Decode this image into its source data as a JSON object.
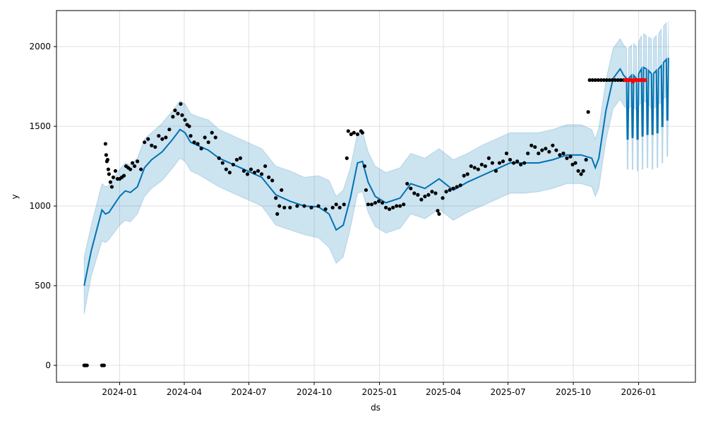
{
  "chart_data": {
    "type": "line",
    "title": "",
    "xlabel": "ds",
    "ylabel": "y",
    "x_unit": "days since x_origin",
    "x_origin": "2024-01-01",
    "xlim_days": [
      -89,
      811
    ],
    "ylim": [
      -106,
      2226
    ],
    "grid": true,
    "x_ticks": [
      {
        "label": "2024-01",
        "day": 0
      },
      {
        "label": "2024-04",
        "day": 91
      },
      {
        "label": "2024-07",
        "day": 182
      },
      {
        "label": "2024-10",
        "day": 274
      },
      {
        "label": "2025-01",
        "day": 366
      },
      {
        "label": "2025-04",
        "day": 456
      },
      {
        "label": "2025-07",
        "day": 547
      },
      {
        "label": "2025-10",
        "day": 639
      },
      {
        "label": "2026-01",
        "day": 731
      }
    ],
    "y_ticks": [
      0,
      500,
      1000,
      1500,
      2000
    ],
    "colors": {
      "forecast": "#0072B2",
      "band": "#0072B2",
      "observed": "#000000",
      "test": "#ff0000"
    },
    "forecast": [
      [
        -50,
        500,
        320,
        680
      ],
      [
        -40,
        720,
        560,
        880
      ],
      [
        -25,
        975,
        780,
        1140
      ],
      [
        -20,
        950,
        770,
        1120
      ],
      [
        -15,
        960,
        790,
        1130
      ],
      [
        0,
        1060,
        880,
        1230
      ],
      [
        8,
        1095,
        910,
        1270
      ],
      [
        15,
        1085,
        900,
        1260
      ],
      [
        25,
        1120,
        950,
        1300
      ],
      [
        35,
        1240,
        1060,
        1420
      ],
      [
        45,
        1290,
        1110,
        1460
      ],
      [
        60,
        1340,
        1160,
        1520
      ],
      [
        75,
        1420,
        1240,
        1600
      ],
      [
        85,
        1480,
        1300,
        1660
      ],
      [
        92,
        1460,
        1280,
        1640
      ],
      [
        100,
        1400,
        1220,
        1580
      ],
      [
        110,
        1380,
        1200,
        1560
      ],
      [
        125,
        1350,
        1160,
        1540
      ],
      [
        140,
        1300,
        1120,
        1480
      ],
      [
        160,
        1260,
        1080,
        1440
      ],
      [
        180,
        1220,
        1040,
        1400
      ],
      [
        200,
        1180,
        1000,
        1360
      ],
      [
        220,
        1070,
        880,
        1250
      ],
      [
        240,
        1030,
        850,
        1220
      ],
      [
        260,
        1000,
        820,
        1180
      ],
      [
        280,
        995,
        800,
        1190
      ],
      [
        295,
        950,
        740,
        1160
      ],
      [
        305,
        850,
        640,
        1060
      ],
      [
        315,
        880,
        680,
        1100
      ],
      [
        325,
        1050,
        860,
        1240
      ],
      [
        335,
        1270,
        1080,
        1460
      ],
      [
        342,
        1280,
        1090,
        1470
      ],
      [
        350,
        1150,
        960,
        1340
      ],
      [
        360,
        1060,
        870,
        1250
      ],
      [
        375,
        1020,
        830,
        1210
      ],
      [
        395,
        1050,
        860,
        1240
      ],
      [
        410,
        1140,
        950,
        1330
      ],
      [
        430,
        1110,
        920,
        1300
      ],
      [
        450,
        1170,
        980,
        1360
      ],
      [
        470,
        1100,
        910,
        1290
      ],
      [
        490,
        1150,
        960,
        1330
      ],
      [
        510,
        1190,
        1000,
        1380
      ],
      [
        530,
        1230,
        1040,
        1420
      ],
      [
        550,
        1270,
        1080,
        1460
      ],
      [
        570,
        1270,
        1080,
        1460
      ],
      [
        590,
        1270,
        1090,
        1460
      ],
      [
        610,
        1290,
        1110,
        1480
      ],
      [
        630,
        1320,
        1140,
        1510
      ],
      [
        650,
        1320,
        1140,
        1510
      ],
      [
        665,
        1300,
        1120,
        1480
      ],
      [
        670,
        1240,
        1060,
        1420
      ],
      [
        675,
        1300,
        1110,
        1490
      ],
      [
        685,
        1600,
        1410,
        1790
      ],
      [
        695,
        1800,
        1610,
        1990
      ],
      [
        705,
        1860,
        1670,
        2050
      ],
      [
        710,
        1820,
        1630,
        2010
      ],
      [
        714,
        1800,
        1610,
        1990
      ],
      [
        715,
        1420,
        1230,
        1610
      ],
      [
        716,
        1420,
        1230,
        1610
      ],
      [
        717,
        1800,
        1610,
        1990
      ],
      [
        721,
        1820,
        1630,
        2010
      ],
      [
        722,
        1430,
        1230,
        1630
      ],
      [
        723,
        1430,
        1230,
        1630
      ],
      [
        724,
        1820,
        1620,
        2020
      ],
      [
        728,
        1800,
        1600,
        2000
      ],
      [
        729,
        1420,
        1220,
        1620
      ],
      [
        730,
        1420,
        1220,
        1620
      ],
      [
        731,
        1830,
        1630,
        2030
      ],
      [
        735,
        1860,
        1650,
        2070
      ],
      [
        736,
        1440,
        1230,
        1650
      ],
      [
        737,
        1440,
        1230,
        1650
      ],
      [
        738,
        1870,
        1660,
        2080
      ],
      [
        742,
        1860,
        1650,
        2070
      ],
      [
        743,
        1450,
        1240,
        1660
      ],
      [
        744,
        1450,
        1240,
        1660
      ],
      [
        745,
        1850,
        1640,
        2060
      ],
      [
        749,
        1830,
        1610,
        2050
      ],
      [
        750,
        1450,
        1230,
        1670
      ],
      [
        751,
        1450,
        1230,
        1670
      ],
      [
        752,
        1830,
        1610,
        2050
      ],
      [
        756,
        1850,
        1630,
        2070
      ],
      [
        757,
        1460,
        1240,
        1680
      ],
      [
        758,
        1460,
        1240,
        1680
      ],
      [
        759,
        1860,
        1640,
        2080
      ],
      [
        763,
        1880,
        1650,
        2110
      ],
      [
        764,
        1500,
        1270,
        1730
      ],
      [
        765,
        1500,
        1270,
        1730
      ],
      [
        766,
        1900,
        1670,
        2130
      ],
      [
        770,
        1920,
        1690,
        2150
      ],
      [
        771,
        1540,
        1310,
        1770
      ],
      [
        772,
        1540,
        1310,
        1770
      ],
      [
        773,
        1930,
        1700,
        2160
      ]
    ],
    "observed": [
      [
        -50,
        0
      ],
      [
        -49,
        0
      ],
      [
        -48,
        0
      ],
      [
        -46,
        0
      ],
      [
        -25,
        0
      ],
      [
        -24,
        0
      ],
      [
        -22,
        0
      ],
      [
        -20,
        1390
      ],
      [
        -19,
        1320
      ],
      [
        -18,
        1280
      ],
      [
        -17,
        1290
      ],
      [
        -16,
        1230
      ],
      [
        -15,
        1200
      ],
      [
        -13,
        1150
      ],
      [
        -11,
        1120
      ],
      [
        -9,
        1180
      ],
      [
        -6,
        1220
      ],
      [
        -3,
        1170
      ],
      [
        0,
        1170
      ],
      [
        3,
        1180
      ],
      [
        6,
        1190
      ],
      [
        9,
        1250
      ],
      [
        12,
        1240
      ],
      [
        15,
        1230
      ],
      [
        18,
        1270
      ],
      [
        21,
        1250
      ],
      [
        25,
        1280
      ],
      [
        30,
        1230
      ],
      [
        35,
        1400
      ],
      [
        40,
        1420
      ],
      [
        45,
        1380
      ],
      [
        50,
        1370
      ],
      [
        55,
        1440
      ],
      [
        60,
        1420
      ],
      [
        65,
        1430
      ],
      [
        70,
        1480
      ],
      [
        75,
        1560
      ],
      [
        78,
        1600
      ],
      [
        82,
        1580
      ],
      [
        86,
        1640
      ],
      [
        88,
        1570
      ],
      [
        92,
        1540
      ],
      [
        95,
        1510
      ],
      [
        98,
        1500
      ],
      [
        100,
        1440
      ],
      [
        105,
        1400
      ],
      [
        110,
        1390
      ],
      [
        115,
        1360
      ],
      [
        120,
        1430
      ],
      [
        125,
        1400
      ],
      [
        130,
        1460
      ],
      [
        135,
        1430
      ],
      [
        140,
        1300
      ],
      [
        145,
        1270
      ],
      [
        150,
        1230
      ],
      [
        155,
        1210
      ],
      [
        160,
        1260
      ],
      [
        165,
        1290
      ],
      [
        170,
        1300
      ],
      [
        175,
        1220
      ],
      [
        180,
        1200
      ],
      [
        185,
        1230
      ],
      [
        190,
        1210
      ],
      [
        195,
        1220
      ],
      [
        200,
        1200
      ],
      [
        205,
        1250
      ],
      [
        210,
        1180
      ],
      [
        215,
        1160
      ],
      [
        220,
        1050
      ],
      [
        222,
        950
      ],
      [
        225,
        1000
      ],
      [
        228,
        1100
      ],
      [
        232,
        990
      ],
      [
        240,
        990
      ],
      [
        250,
        1000
      ],
      [
        260,
        1000
      ],
      [
        270,
        990
      ],
      [
        280,
        1000
      ],
      [
        290,
        980
      ],
      [
        300,
        990
      ],
      [
        305,
        1010
      ],
      [
        310,
        990
      ],
      [
        316,
        1010
      ],
      [
        320,
        1300
      ],
      [
        322,
        1470
      ],
      [
        326,
        1450
      ],
      [
        330,
        1460
      ],
      [
        335,
        1450
      ],
      [
        340,
        1470
      ],
      [
        342,
        1460
      ],
      [
        345,
        1250
      ],
      [
        347,
        1100
      ],
      [
        350,
        1010
      ],
      [
        355,
        1010
      ],
      [
        360,
        1020
      ],
      [
        365,
        1030
      ],
      [
        370,
        1020
      ],
      [
        375,
        990
      ],
      [
        380,
        980
      ],
      [
        385,
        990
      ],
      [
        390,
        1000
      ],
      [
        395,
        1000
      ],
      [
        400,
        1010
      ],
      [
        405,
        1140
      ],
      [
        410,
        1110
      ],
      [
        415,
        1080
      ],
      [
        420,
        1070
      ],
      [
        425,
        1040
      ],
      [
        430,
        1060
      ],
      [
        435,
        1070
      ],
      [
        440,
        1090
      ],
      [
        445,
        1080
      ],
      [
        448,
        970
      ],
      [
        450,
        950
      ],
      [
        455,
        1050
      ],
      [
        460,
        1090
      ],
      [
        465,
        1100
      ],
      [
        470,
        1110
      ],
      [
        475,
        1120
      ],
      [
        480,
        1130
      ],
      [
        485,
        1190
      ],
      [
        490,
        1200
      ],
      [
        495,
        1250
      ],
      [
        500,
        1240
      ],
      [
        505,
        1230
      ],
      [
        510,
        1260
      ],
      [
        515,
        1250
      ],
      [
        520,
        1300
      ],
      [
        525,
        1270
      ],
      [
        530,
        1220
      ],
      [
        535,
        1270
      ],
      [
        540,
        1280
      ],
      [
        545,
        1330
      ],
      [
        550,
        1290
      ],
      [
        555,
        1270
      ],
      [
        560,
        1280
      ],
      [
        565,
        1260
      ],
      [
        570,
        1270
      ],
      [
        575,
        1330
      ],
      [
        580,
        1380
      ],
      [
        585,
        1370
      ],
      [
        590,
        1330
      ],
      [
        595,
        1350
      ],
      [
        600,
        1360
      ],
      [
        605,
        1340
      ],
      [
        610,
        1380
      ],
      [
        615,
        1350
      ],
      [
        620,
        1320
      ],
      [
        625,
        1330
      ],
      [
        630,
        1300
      ],
      [
        635,
        1310
      ],
      [
        638,
        1260
      ],
      [
        642,
        1270
      ],
      [
        646,
        1220
      ],
      [
        650,
        1200
      ],
      [
        653,
        1220
      ],
      [
        657,
        1290
      ],
      [
        660,
        1590
      ],
      [
        662,
        1790
      ],
      [
        666,
        1790
      ],
      [
        670,
        1790
      ],
      [
        674,
        1790
      ],
      [
        678,
        1790
      ],
      [
        682,
        1790
      ],
      [
        686,
        1790
      ],
      [
        690,
        1790
      ],
      [
        694,
        1790
      ],
      [
        698,
        1790
      ],
      [
        702,
        1790
      ],
      [
        706,
        1790
      ],
      [
        710,
        1790
      ]
    ],
    "test": [
      [
        712,
        1790
      ],
      [
        715,
        1790
      ],
      [
        718,
        1790
      ],
      [
        721,
        1790
      ],
      [
        723,
        1780
      ],
      [
        725,
        1790
      ],
      [
        728,
        1790
      ],
      [
        731,
        1790
      ],
      [
        734,
        1790
      ],
      [
        737,
        1790
      ],
      [
        740,
        1790
      ]
    ]
  }
}
